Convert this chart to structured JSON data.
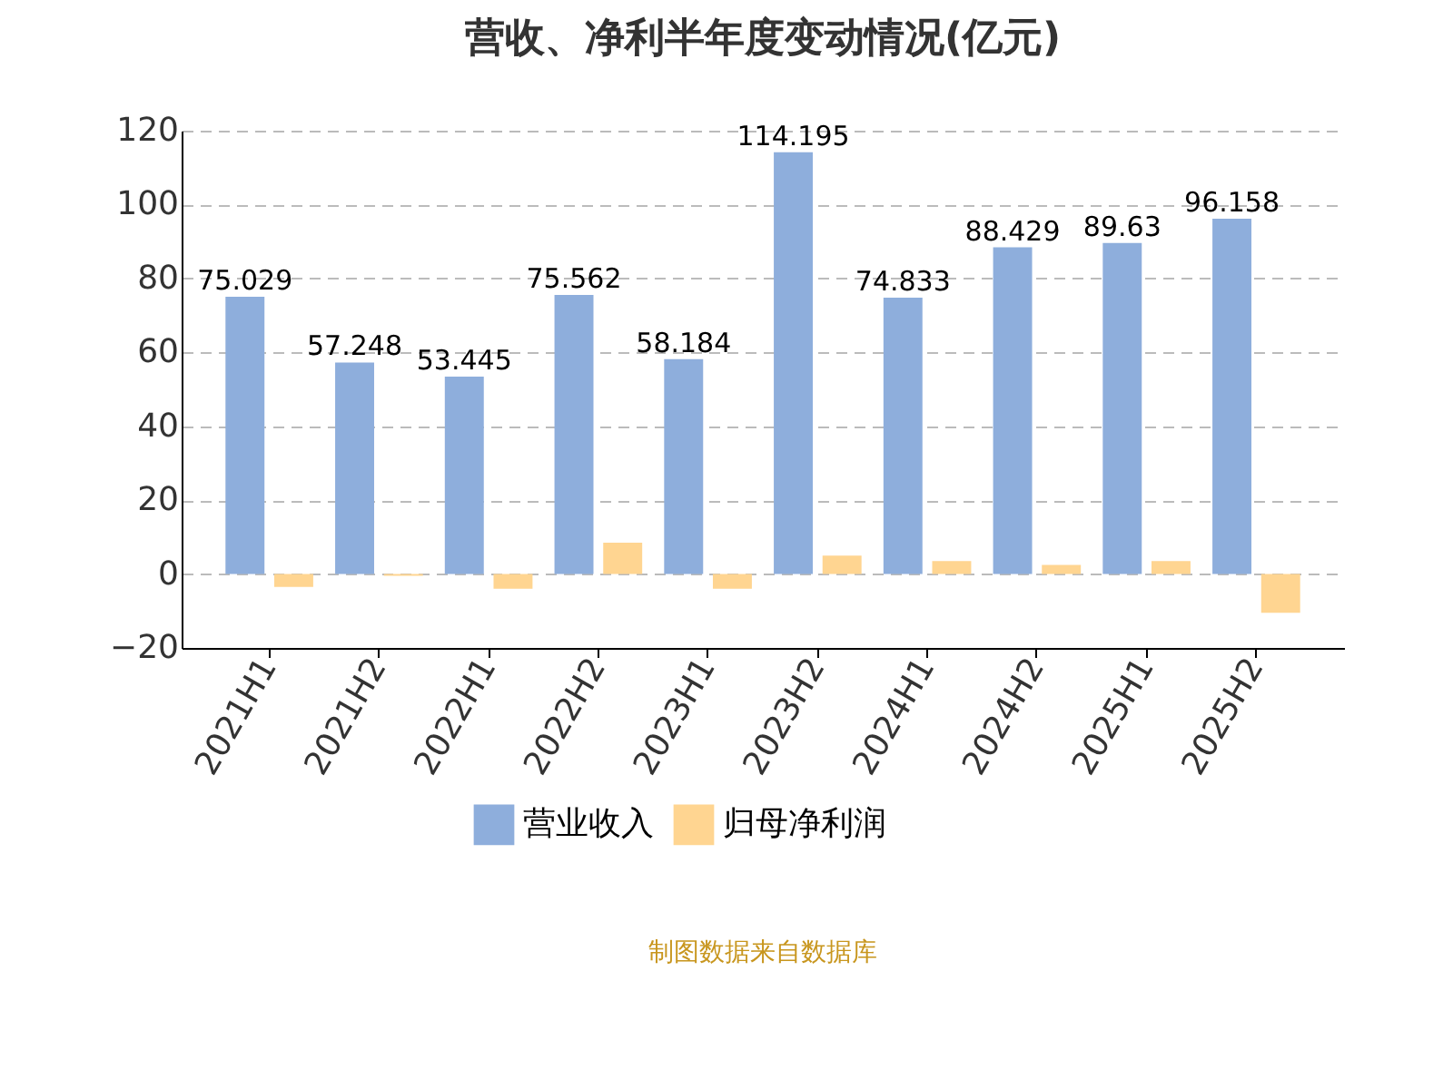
{
  "chart_data": {
    "type": "bar",
    "title": "营收、净利半年度变动情况(亿元)",
    "categories": [
      "2021H1",
      "2021H2",
      "2022H1",
      "2022H2",
      "2023H1",
      "2023H2",
      "2024H1",
      "2024H2",
      "2025H1",
      "2025H2"
    ],
    "series": [
      {
        "name": "营业收入",
        "color": "#8eaedc",
        "values": [
          75.029,
          57.248,
          53.445,
          75.562,
          58.184,
          114.195,
          74.833,
          88.429,
          89.63,
          96.158
        ],
        "value_labels": [
          "75.029",
          "57.248",
          "53.445",
          "75.562",
          "58.184",
          "114.195",
          "74.833",
          "88.429",
          "89.63",
          "96.158"
        ]
      },
      {
        "name": "归母净利润",
        "color": "#ffd591",
        "values": [
          -3.5,
          -0.5,
          -4,
          8.5,
          -4,
          5,
          3.5,
          2.5,
          3.5,
          -10.5
        ]
      }
    ],
    "ylim": [
      -20,
      120
    ],
    "yticks": [
      -20,
      0,
      20,
      40,
      60,
      80,
      100,
      120
    ],
    "grid": "y",
    "legend": "bottom",
    "annotations": [
      "制图数据来自数据库"
    ]
  }
}
